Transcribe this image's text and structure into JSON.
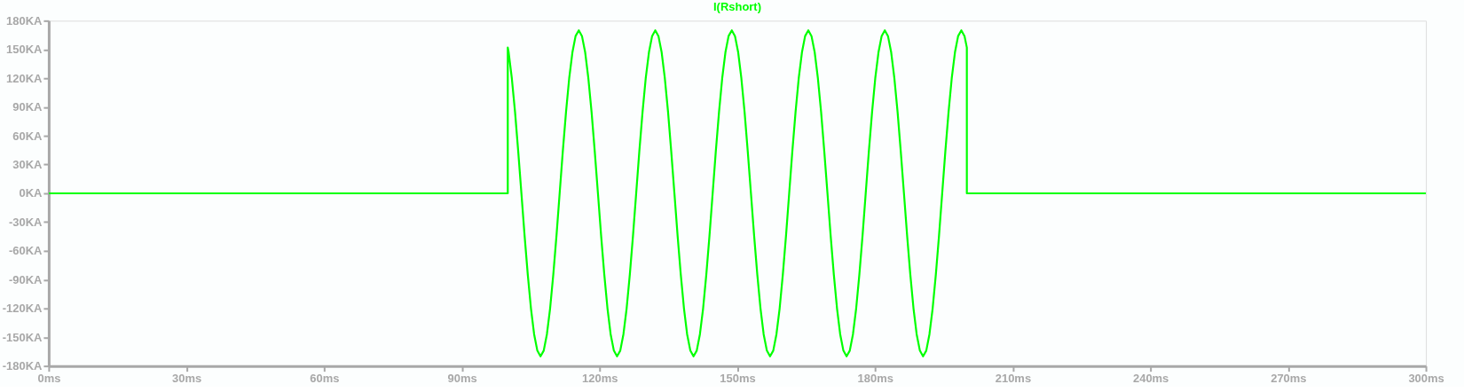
{
  "chart_data": {
    "type": "line",
    "title": "I(Rshort)",
    "xlim": [
      0,
      300
    ],
    "ylim": [
      -180,
      180
    ],
    "xticks": [
      {
        "value": 0,
        "label": "0ms"
      },
      {
        "value": 30,
        "label": "30ms"
      },
      {
        "value": 60,
        "label": "60ms"
      },
      {
        "value": 90,
        "label": "90ms"
      },
      {
        "value": 120,
        "label": "120ms"
      },
      {
        "value": 150,
        "label": "150ms"
      },
      {
        "value": 180,
        "label": "180ms"
      },
      {
        "value": 210,
        "label": "210ms"
      },
      {
        "value": 240,
        "label": "240ms"
      },
      {
        "value": 270,
        "label": "270ms"
      },
      {
        "value": 300,
        "label": "300ms"
      }
    ],
    "yticks": [
      {
        "value": -180,
        "label": "-180KA"
      },
      {
        "value": -150,
        "label": "-150KA"
      },
      {
        "value": -120,
        "label": "-120KA"
      },
      {
        "value": -90,
        "label": "-90KA"
      },
      {
        "value": -60,
        "label": "-60KA"
      },
      {
        "value": -30,
        "label": "-30KA"
      },
      {
        "value": 0,
        "label": "0KA"
      },
      {
        "value": 30,
        "label": "30KA"
      },
      {
        "value": 60,
        "label": "60KA"
      },
      {
        "value": 90,
        "label": "90KA"
      },
      {
        "value": 120,
        "label": "120KA"
      },
      {
        "value": 150,
        "label": "150KA"
      },
      {
        "value": 180,
        "label": "180KA"
      }
    ],
    "grid": false,
    "legend": false,
    "marker": "none",
    "line_style": "solid",
    "series": [
      {
        "color": "#00ff00",
        "x": [
          0,
          100,
          100,
          100.19,
          100.88,
          101.58,
          102.27,
          102.97,
          103.66,
          104.36,
          105.05,
          105.74,
          106.44,
          107.13,
          107.83,
          108.52,
          109.22,
          109.91,
          110.61,
          111.3,
          111.99,
          112.69,
          113.38,
          114.08,
          114.77,
          115.47,
          116.16,
          116.86,
          117.55,
          118.25,
          118.94,
          119.64,
          120.33,
          121.03,
          121.72,
          122.41,
          123.11,
          123.8,
          124.5,
          125.19,
          125.89,
          126.58,
          127.28,
          127.97,
          128.66,
          129.36,
          130.05,
          130.75,
          131.44,
          132.13,
          132.82,
          133.52,
          134.21,
          134.91,
          135.6,
          136.3,
          136.99,
          137.69,
          138.38,
          139.07,
          139.77,
          140.46,
          141.16,
          141.85,
          142.55,
          143.24,
          143.94,
          144.63,
          145.32,
          146.02,
          146.71,
          147.41,
          148.1,
          148.8,
          149.49,
          150.19,
          150.88,
          151.58,
          152.27,
          152.97,
          153.66,
          154.36,
          155.05,
          155.74,
          156.44,
          157.13,
          157.83,
          158.52,
          159.22,
          159.91,
          160.61,
          161.3,
          161.99,
          162.69,
          163.38,
          164.08,
          164.77,
          165.47,
          166.16,
          166.86,
          167.55,
          168.25,
          168.94,
          169.64,
          170.33,
          171.03,
          171.72,
          172.41,
          173.11,
          173.8,
          174.5,
          175.19,
          175.89,
          176.58,
          177.28,
          177.97,
          178.66,
          179.36,
          180.05,
          180.75,
          181.44,
          182.13,
          182.82,
          183.52,
          184.21,
          184.91,
          185.6,
          186.3,
          186.99,
          187.69,
          188.38,
          189.07,
          189.77,
          190.46,
          191.16,
          191.85,
          192.55,
          193.24,
          193.94,
          194.63,
          195.32,
          196.02,
          196.71,
          197.41,
          198.1,
          198.8,
          199.49,
          200,
          200,
          300
        ],
        "values": [
          0,
          0,
          152,
          147,
          120,
          85,
          44,
          0,
          -44,
          -85,
          -120,
          -147,
          -164,
          -170,
          -164,
          -147,
          -120,
          -85,
          -44,
          0,
          44,
          85,
          120,
          147,
          164,
          170,
          164,
          147,
          120,
          85,
          44,
          0,
          -44,
          -85,
          -120,
          -147,
          -164,
          -170,
          -164,
          -147,
          -120,
          -85,
          -44,
          0,
          44,
          85,
          120,
          147,
          164,
          170,
          164,
          147,
          120,
          85,
          44,
          0,
          -44,
          -85,
          -120,
          -147,
          -164,
          -170,
          -164,
          -147,
          -120,
          -85,
          -44,
          0,
          44,
          85,
          120,
          147,
          164,
          170,
          164,
          147,
          120,
          85,
          44,
          0,
          -44,
          -85,
          -120,
          -147,
          -164,
          -170,
          -164,
          -147,
          -120,
          -85,
          -44,
          0,
          44,
          85,
          120,
          147,
          164,
          170,
          164,
          147,
          120,
          85,
          44,
          0,
          -44,
          -85,
          -120,
          -147,
          -164,
          -170,
          -164,
          -147,
          -120,
          -85,
          -44,
          0,
          44,
          85,
          120,
          147,
          164,
          170,
          164,
          147,
          120,
          85,
          44,
          0,
          -44,
          -85,
          -120,
          -147,
          -164,
          -170,
          -164,
          -147,
          -120,
          -85,
          -44,
          0,
          44,
          85,
          120,
          147,
          164,
          170,
          164,
          152,
          0,
          0
        ]
      }
    ]
  }
}
